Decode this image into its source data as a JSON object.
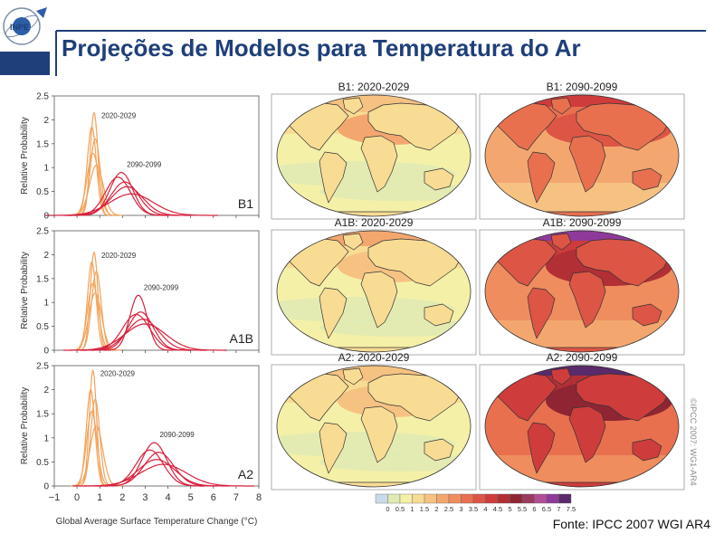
{
  "slide": {
    "logo_text": "INPE",
    "title": "Projeções de Modelos para Temperatura do Ar",
    "source": "Fonte: IPCC 2007 WGI AR4",
    "copyright": "©IPCC 2007: WG1-AR4",
    "colors": {
      "title": "#1f3f7a",
      "accent_bar": "#1f3f7a",
      "early_curves": "#f3a35a",
      "late_curves": "#d8203c"
    }
  },
  "map_titles": [
    "B1: 2020-2029",
    "B1: 2090-2099",
    "A1B: 2020-2029",
    "A1B: 2090-2099",
    "A2: 2020-2029",
    "A2: 2090-2099"
  ],
  "color_scale": {
    "labels": [
      "0",
      "0.5",
      "1",
      "1.5",
      "2",
      "2.5",
      "3",
      "3.5",
      "4",
      "4.5",
      "5",
      "5.5",
      "6",
      "6.5",
      "7",
      "7.5"
    ],
    "colors": [
      "#c9dbe9",
      "#dfeab4",
      "#f5f0a8",
      "#f8dc94",
      "#f6c282",
      "#f3a76f",
      "#ef8d5f",
      "#e8704f",
      "#dd5545",
      "#cf3c3c",
      "#b12f35",
      "#8f2533",
      "#9a3a5f",
      "#b14e96",
      "#8f3a9a",
      "#5a2a6a"
    ]
  },
  "chart_data": {
    "type": "line",
    "xlabel": "Global Average Surface Temperature Change (°C)",
    "ylabel": "Relative Probability",
    "xlim": [
      -1,
      8
    ],
    "ylim": [
      0,
      2.5
    ],
    "xticks": [
      "−1",
      "0",
      "1",
      "2",
      "3",
      "4",
      "5",
      "6",
      "7",
      "8"
    ],
    "yticks": [
      "0",
      "0.5",
      "1",
      "1.5",
      "2",
      "2.5"
    ],
    "grid": false,
    "panels": [
      {
        "scenario": "B1",
        "label_early": "2020-2029",
        "label_late": "2090-2099",
        "series_early": [
          {
            "peak_x": 0.75,
            "peak_y": 2.15,
            "sigma": 0.17
          },
          {
            "peak_x": 0.65,
            "peak_y": 1.85,
            "sigma": 0.2
          },
          {
            "peak_x": 0.8,
            "peak_y": 1.6,
            "sigma": 0.22
          },
          {
            "peak_x": 0.7,
            "peak_y": 1.3,
            "sigma": 0.26
          },
          {
            "peak_x": 0.85,
            "peak_y": 1.05,
            "sigma": 0.3
          }
        ],
        "series_late": [
          {
            "peak_x": 1.95,
            "peak_y": 0.9,
            "sigma": 0.5
          },
          {
            "peak_x": 1.8,
            "peak_y": 0.8,
            "sigma": 0.55
          },
          {
            "peak_x": 2.1,
            "peak_y": 0.7,
            "sigma": 0.6
          },
          {
            "peak_x": 2.2,
            "peak_y": 0.6,
            "sigma": 0.7
          },
          {
            "peak_x": 2.4,
            "peak_y": 0.45,
            "sigma": 0.95
          }
        ]
      },
      {
        "scenario": "A1B",
        "label_early": "2020-2029",
        "label_late": "2090-2099",
        "series_early": [
          {
            "peak_x": 0.75,
            "peak_y": 2.05,
            "sigma": 0.17
          },
          {
            "peak_x": 0.65,
            "peak_y": 1.85,
            "sigma": 0.19
          },
          {
            "peak_x": 0.85,
            "peak_y": 1.65,
            "sigma": 0.21
          },
          {
            "peak_x": 0.7,
            "peak_y": 1.4,
            "sigma": 0.24
          },
          {
            "peak_x": 0.8,
            "peak_y": 1.2,
            "sigma": 0.28
          }
        ],
        "series_late": [
          {
            "peak_x": 2.7,
            "peak_y": 1.15,
            "sigma": 0.38
          },
          {
            "peak_x": 2.8,
            "peak_y": 0.8,
            "sigma": 0.55
          },
          {
            "peak_x": 2.6,
            "peak_y": 0.75,
            "sigma": 0.6
          },
          {
            "peak_x": 2.9,
            "peak_y": 0.65,
            "sigma": 0.7
          },
          {
            "peak_x": 3.0,
            "peak_y": 0.55,
            "sigma": 0.9
          }
        ]
      },
      {
        "scenario": "A2",
        "label_early": "2020-2029",
        "label_late": "2090-2099",
        "series_early": [
          {
            "peak_x": 0.7,
            "peak_y": 2.4,
            "sigma": 0.16
          },
          {
            "peak_x": 0.6,
            "peak_y": 2.0,
            "sigma": 0.19
          },
          {
            "peak_x": 0.8,
            "peak_y": 1.8,
            "sigma": 0.2
          },
          {
            "peak_x": 0.65,
            "peak_y": 1.55,
            "sigma": 0.23
          },
          {
            "peak_x": 0.85,
            "peak_y": 1.25,
            "sigma": 0.28
          }
        ],
        "series_late": [
          {
            "peak_x": 3.4,
            "peak_y": 0.9,
            "sigma": 0.55
          },
          {
            "peak_x": 3.2,
            "peak_y": 0.75,
            "sigma": 0.6
          },
          {
            "peak_x": 3.6,
            "peak_y": 0.7,
            "sigma": 0.65
          },
          {
            "peak_x": 3.5,
            "peak_y": 0.55,
            "sigma": 0.8
          },
          {
            "peak_x": 3.8,
            "peak_y": 0.45,
            "sigma": 1.0
          }
        ]
      }
    ]
  }
}
